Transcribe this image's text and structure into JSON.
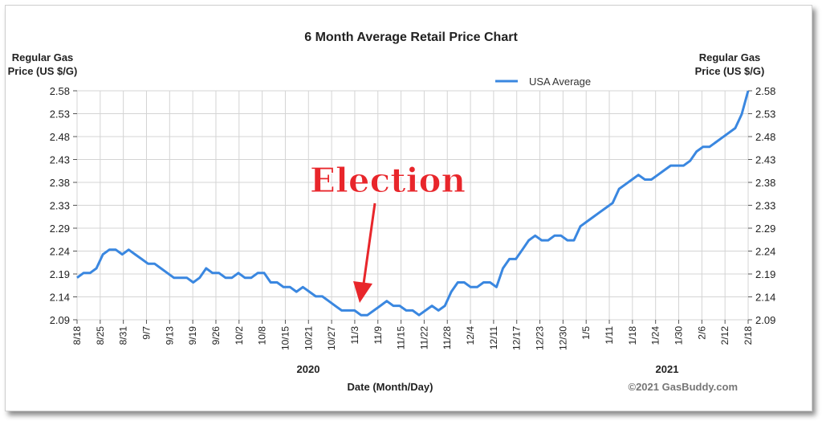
{
  "chart_data": {
    "type": "line",
    "title": "6 Month Average Retail Price Chart",
    "ylabel_left": [
      "Regular Gas",
      "Price (US $/G)"
    ],
    "ylabel_right": [
      "Regular Gas",
      "Price (US $/G)"
    ],
    "xlabel": "Date (Month/Day)",
    "ylim": [
      2.09,
      2.58
    ],
    "yticks": [
      "2.58",
      "2.53",
      "2.48",
      "2.43",
      "2.38",
      "2.33",
      "2.29",
      "2.24",
      "2.19",
      "2.14",
      "2.09"
    ],
    "xticks": [
      "8/18",
      "8/25",
      "8/31",
      "9/7",
      "9/13",
      "9/19",
      "9/26",
      "10/2",
      "10/8",
      "10/15",
      "10/21",
      "10/27",
      "11/3",
      "11/9",
      "11/15",
      "11/22",
      "11/28",
      "12/4",
      "12/11",
      "12/17",
      "12/23",
      "12/30",
      "1/5",
      "1/11",
      "1/18",
      "1/24",
      "1/30",
      "2/6",
      "2/12",
      "2/18"
    ],
    "year_labels": [
      "2020",
      "2021"
    ],
    "grid": true,
    "legend_position": "top-right",
    "annotation": "Election",
    "credit": "©2021 GasBuddy.com",
    "series": [
      {
        "name": "USA Average",
        "color": "#3a87e0",
        "values": [
          2.18,
          2.19,
          2.19,
          2.2,
          2.23,
          2.24,
          2.24,
          2.23,
          2.24,
          2.23,
          2.22,
          2.21,
          2.21,
          2.2,
          2.19,
          2.18,
          2.18,
          2.18,
          2.17,
          2.18,
          2.2,
          2.19,
          2.19,
          2.18,
          2.18,
          2.19,
          2.18,
          2.18,
          2.19,
          2.19,
          2.17,
          2.17,
          2.16,
          2.16,
          2.15,
          2.16,
          2.15,
          2.14,
          2.14,
          2.13,
          2.12,
          2.11,
          2.11,
          2.11,
          2.1,
          2.1,
          2.11,
          2.12,
          2.13,
          2.12,
          2.12,
          2.11,
          2.11,
          2.1,
          2.11,
          2.12,
          2.11,
          2.12,
          2.15,
          2.17,
          2.17,
          2.16,
          2.16,
          2.17,
          2.17,
          2.16,
          2.2,
          2.22,
          2.22,
          2.24,
          2.26,
          2.27,
          2.26,
          2.26,
          2.27,
          2.27,
          2.26,
          2.26,
          2.29,
          2.3,
          2.31,
          2.32,
          2.33,
          2.34,
          2.37,
          2.38,
          2.39,
          2.4,
          2.39,
          2.39,
          2.4,
          2.41,
          2.42,
          2.42,
          2.42,
          2.43,
          2.45,
          2.46,
          2.46,
          2.47,
          2.48,
          2.49,
          2.5,
          2.53,
          2.58
        ]
      }
    ]
  }
}
